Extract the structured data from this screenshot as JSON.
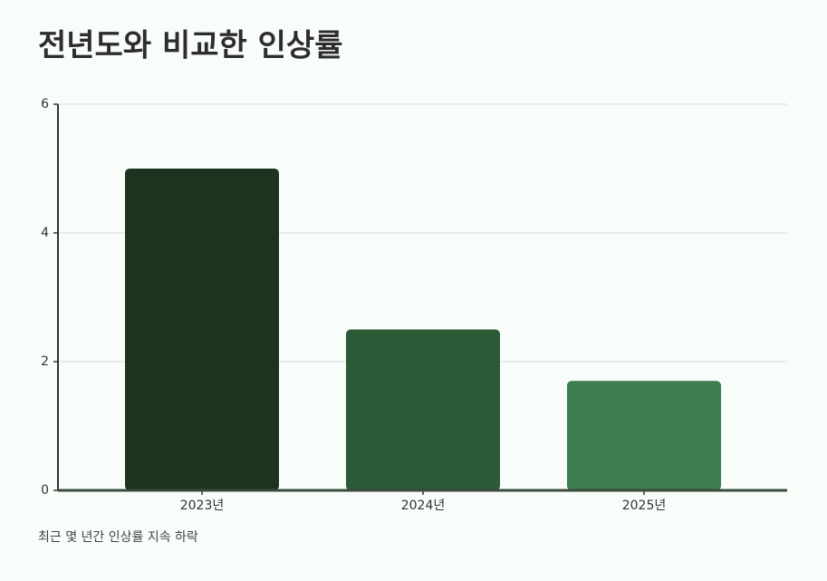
{
  "chart_data": {
    "type": "bar",
    "title": "전년도와 비교한 인상률",
    "categories": [
      "2023년",
      "2024년",
      "2025년"
    ],
    "values": [
      5,
      2.5,
      1.7
    ],
    "colors": [
      "#1c3320",
      "#2b5a36",
      "#3d7c4d"
    ],
    "ylim": [
      0,
      6
    ],
    "yticks": [
      0,
      2,
      4,
      6
    ],
    "grid": true,
    "caption": "최근 몇 년간 인상률 지속 하락"
  }
}
